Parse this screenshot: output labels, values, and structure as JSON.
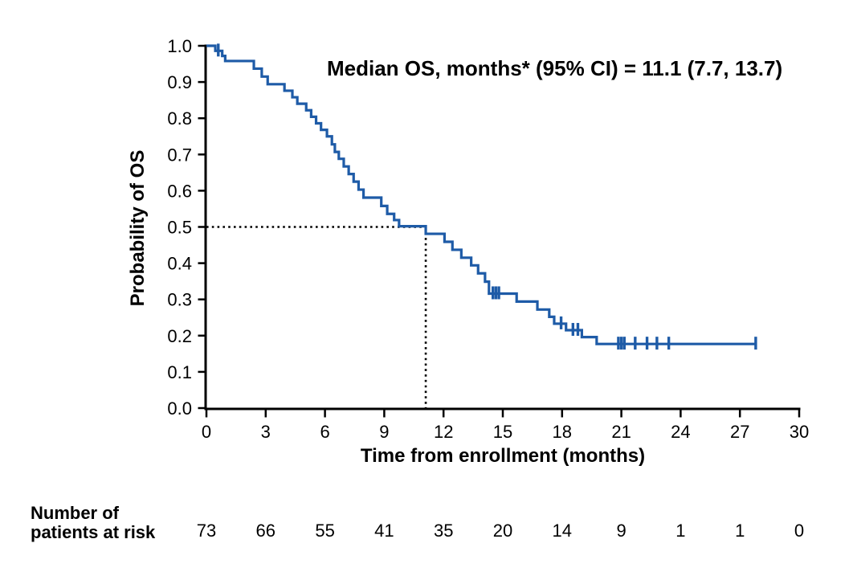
{
  "annotation": {
    "text": "Median OS, months* (95% CI) = 11.1 (7.7, 13.7)"
  },
  "colors": {
    "curve": "#1e5ba7",
    "axis": "#000000",
    "median_reference_line": "#000000",
    "text": "#000000",
    "background": "#ffffff"
  },
  "chart_data": {
    "type": "line",
    "subtype": "kaplan_meier_step",
    "title": "",
    "xlabel": "Time from enrollment (months)",
    "ylabel": "Probability of OS",
    "xlim": [
      0,
      30
    ],
    "ylim": [
      0.0,
      1.0
    ],
    "xticks": [
      0,
      3,
      6,
      9,
      12,
      15,
      18,
      21,
      24,
      27,
      30
    ],
    "xtick_labels": [
      "0",
      "3",
      "6",
      "9",
      "12",
      "15",
      "18",
      "21",
      "24",
      "27",
      "30"
    ],
    "yticks": [
      0.0,
      0.1,
      0.2,
      0.3,
      0.4,
      0.5,
      0.6,
      0.7,
      0.8,
      0.9,
      1.0
    ],
    "ytick_labels": [
      "0.0",
      "0.1",
      "0.2",
      "0.3",
      "0.4",
      "0.5",
      "0.6",
      "0.7",
      "0.8",
      "0.9",
      "1.0"
    ],
    "grid": false,
    "legend": "none",
    "median_os_months": 11.1,
    "median_ci_95": [
      7.7,
      13.7
    ],
    "median_reference": {
      "x": 11.1,
      "y": 0.5
    },
    "series": [
      {
        "name": "Overall survival",
        "steps": [
          [
            0,
            1.0
          ],
          [
            0.45,
            0.986
          ],
          [
            0.8,
            0.972
          ],
          [
            0.95,
            0.958
          ],
          [
            2.4,
            0.937
          ],
          [
            2.8,
            0.915
          ],
          [
            3.1,
            0.894
          ],
          [
            3.95,
            0.876
          ],
          [
            4.35,
            0.858
          ],
          [
            4.6,
            0.84
          ],
          [
            5.05,
            0.822
          ],
          [
            5.3,
            0.804
          ],
          [
            5.55,
            0.786
          ],
          [
            5.8,
            0.768
          ],
          [
            6.1,
            0.75
          ],
          [
            6.35,
            0.728
          ],
          [
            6.5,
            0.707
          ],
          [
            6.7,
            0.688
          ],
          [
            6.95,
            0.667
          ],
          [
            7.2,
            0.646
          ],
          [
            7.45,
            0.625
          ],
          [
            7.7,
            0.603
          ],
          [
            7.95,
            0.581
          ],
          [
            8.85,
            0.558
          ],
          [
            9.15,
            0.536
          ],
          [
            9.5,
            0.519
          ],
          [
            9.75,
            0.502
          ],
          [
            11.1,
            0.481
          ],
          [
            12.05,
            0.459
          ],
          [
            12.45,
            0.437
          ],
          [
            12.9,
            0.415
          ],
          [
            13.4,
            0.394
          ],
          [
            13.75,
            0.372
          ],
          [
            14.1,
            0.349
          ],
          [
            14.3,
            0.316
          ],
          [
            15.7,
            0.294
          ],
          [
            16.75,
            0.272
          ],
          [
            17.35,
            0.252
          ],
          [
            17.6,
            0.233
          ],
          [
            18.2,
            0.215
          ],
          [
            19.0,
            0.196
          ],
          [
            19.75,
            0.177
          ]
        ],
        "end": [
          27.8,
          0.177
        ],
        "censors": [
          [
            0.6,
            0.986
          ],
          [
            14.5,
            0.316
          ],
          [
            14.65,
            0.316
          ],
          [
            14.8,
            0.316
          ],
          [
            17.95,
            0.233
          ],
          [
            18.55,
            0.215
          ],
          [
            18.8,
            0.215
          ],
          [
            20.85,
            0.177
          ],
          [
            21.0,
            0.177
          ],
          [
            21.15,
            0.177
          ],
          [
            21.7,
            0.177
          ],
          [
            22.3,
            0.177
          ],
          [
            22.8,
            0.177
          ],
          [
            23.4,
            0.177
          ],
          [
            27.8,
            0.177
          ]
        ]
      }
    ]
  },
  "risk_table": {
    "label_line1": "Number of",
    "label_line2": "patients at risk",
    "times": [
      0,
      3,
      6,
      9,
      12,
      15,
      18,
      21,
      24,
      27,
      30
    ],
    "counts": [
      "73",
      "66",
      "55",
      "41",
      "35",
      "20",
      "14",
      "9",
      "1",
      "1",
      "0"
    ]
  }
}
